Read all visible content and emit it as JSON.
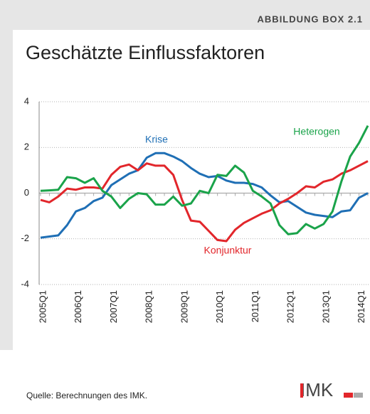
{
  "box_label": "ABBILDUNG BOX 2.1",
  "source": "Quelle: Berechnungen des IMK.",
  "logo": "IMK",
  "chart_data": {
    "type": "line",
    "title": "Geschätzte Einflussfaktoren",
    "categories": [
      "2005Q1",
      null,
      null,
      null,
      "2006Q1",
      null,
      null,
      null,
      "2007Q1",
      null,
      null,
      null,
      "2008Q1",
      null,
      null,
      null,
      "2009Q1",
      null,
      null,
      null,
      "2010Q1",
      null,
      null,
      null,
      "2011Q1",
      null,
      null,
      null,
      "2012Q1",
      null,
      null,
      null,
      "2013Q1",
      null,
      null,
      null,
      "2014Q1",
      null
    ],
    "series": [
      {
        "name": "Krise",
        "color": "#1f6fb5",
        "values": [
          -1.95,
          -1.9,
          -1.85,
          -1.4,
          -0.8,
          -0.65,
          -0.35,
          -0.2,
          0.35,
          0.6,
          0.85,
          1.0,
          1.55,
          1.75,
          1.75,
          1.6,
          1.4,
          1.1,
          0.85,
          0.7,
          0.75,
          0.55,
          0.45,
          0.45,
          0.4,
          0.25,
          -0.1,
          -0.4,
          -0.35,
          -0.6,
          -0.85,
          -0.95,
          -1.0,
          -1.05,
          -0.8,
          -0.75,
          -0.2,
          0.0
        ]
      },
      {
        "name": "Konjunktur",
        "color": "#e2262b",
        "values": [
          -0.3,
          -0.4,
          -0.15,
          0.2,
          0.15,
          0.25,
          0.25,
          0.2,
          0.8,
          1.15,
          1.25,
          1.0,
          1.3,
          1.2,
          1.2,
          0.8,
          -0.3,
          -1.2,
          -1.25,
          -1.65,
          -2.05,
          -2.1,
          -1.6,
          -1.3,
          -1.1,
          -0.9,
          -0.75,
          -0.45,
          -0.25,
          0.0,
          0.3,
          0.25,
          0.5,
          0.6,
          0.85,
          1.0,
          1.2,
          1.4
        ]
      },
      {
        "name": "Heterogen",
        "color": "#1aa34a",
        "values": [
          0.1,
          0.12,
          0.15,
          0.7,
          0.65,
          0.45,
          0.65,
          0.1,
          -0.15,
          -0.65,
          -0.25,
          0.0,
          -0.05,
          -0.5,
          -0.5,
          -0.15,
          -0.55,
          -0.45,
          0.1,
          0.0,
          0.8,
          0.75,
          1.2,
          0.9,
          0.1,
          -0.15,
          -0.45,
          -1.4,
          -1.8,
          -1.75,
          -1.35,
          -1.55,
          -1.35,
          -0.8,
          0.5,
          1.6,
          2.2,
          2.95
        ]
      }
    ],
    "ylim": [
      -4,
      4
    ],
    "yticks": [
      -4,
      -2,
      0,
      2,
      4
    ],
    "grid": true
  }
}
